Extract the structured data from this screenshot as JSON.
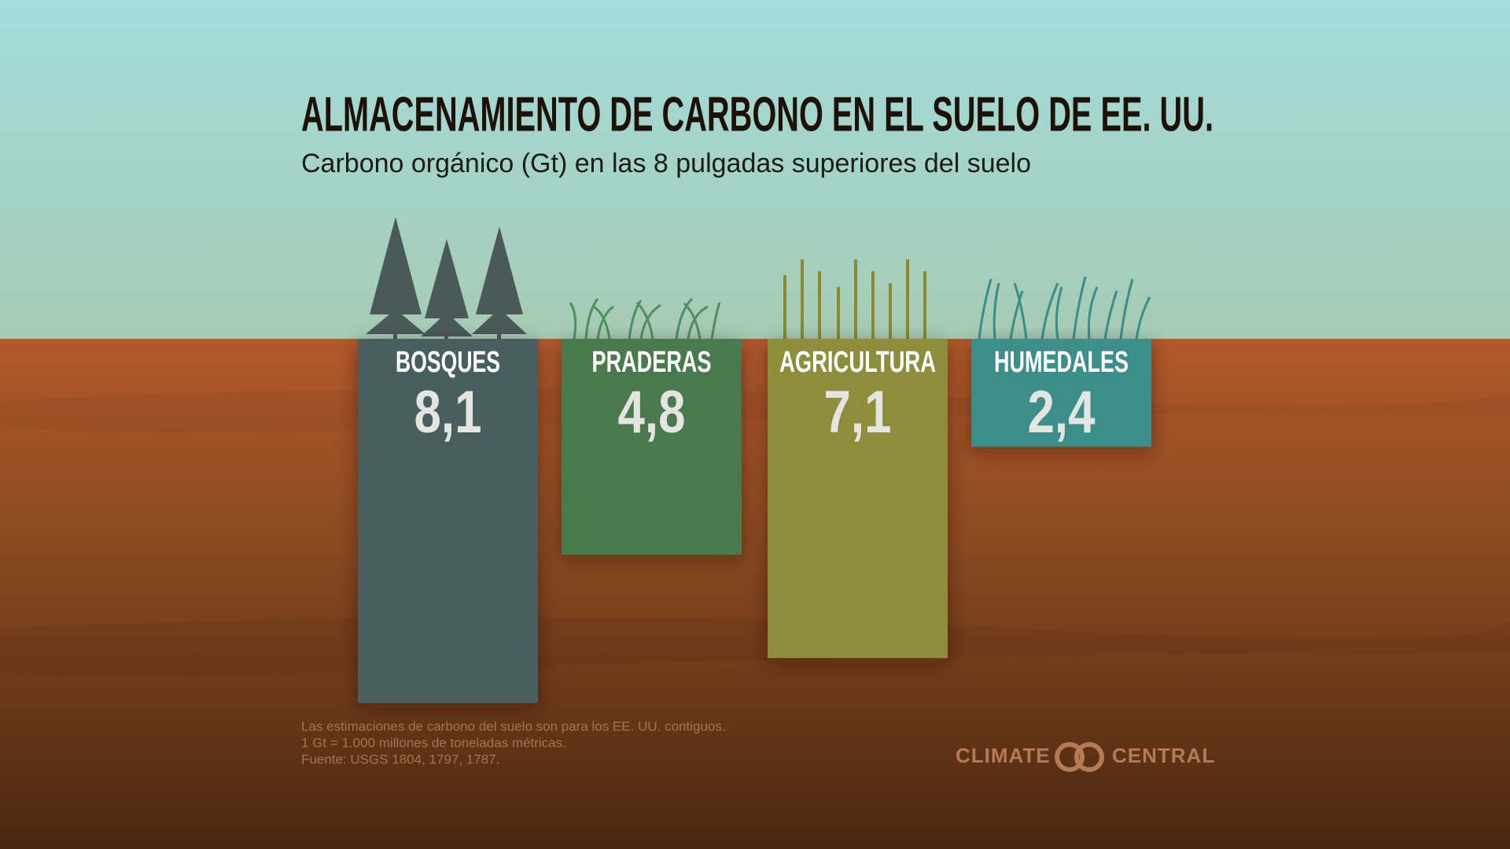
{
  "chart_data": {
    "type": "bar",
    "title": "ALMACENAMIENTO DE CARBONO EN EL SUELO DE EE. UU.",
    "subtitle": "Carbono orgánico (Gt) en las 8 pulgadas superiores del suelo",
    "categories": [
      "BOSQUES",
      "PRADERAS",
      "AGRICULTURA",
      "HUMEDALES"
    ],
    "values": [
      8.1,
      4.8,
      7.1,
      2.4
    ],
    "value_labels": [
      "8,1",
      "4,8",
      "7,1",
      "2,4"
    ],
    "colors": [
      "#4a5f5e",
      "#4a7a4e",
      "#8e8d3a",
      "#3a8e8a"
    ],
    "notes": [
      "Las estimaciones de carbono del suelo son para los EE. UU. contiguos.",
      "1 Gt = 1.000 millones de toneladas métricas.",
      "Fuente: USGS 1804, 1797, 1787."
    ],
    "credit": [
      "CLIMATE",
      "CENTRAL"
    ]
  }
}
